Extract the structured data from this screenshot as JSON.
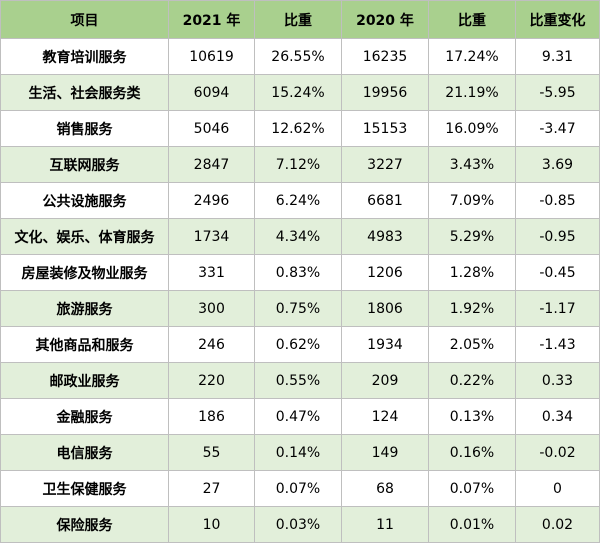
{
  "colors": {
    "header_bg": "#a9d08e",
    "row_alt_bg": "#e2efda",
    "row_bg": "#ffffff",
    "border": "#bfbfbf"
  },
  "table": {
    "headers": [
      "项目",
      "2021 年",
      "比重",
      "2020 年",
      "比重",
      "比重变化"
    ],
    "rows": [
      [
        "教育培训服务",
        "10619",
        "26.55%",
        "16235",
        "17.24%",
        "9.31"
      ],
      [
        "生活、社会服务类",
        "6094",
        "15.24%",
        "19956",
        "21.19%",
        "-5.95"
      ],
      [
        "销售服务",
        "5046",
        "12.62%",
        "15153",
        "16.09%",
        "-3.47"
      ],
      [
        "互联网服务",
        "2847",
        "7.12%",
        "3227",
        "3.43%",
        "3.69"
      ],
      [
        "公共设施服务",
        "2496",
        "6.24%",
        "6681",
        "7.09%",
        "-0.85"
      ],
      [
        "文化、娱乐、体育服务",
        "1734",
        "4.34%",
        "4983",
        "5.29%",
        "-0.95"
      ],
      [
        "房屋装修及物业服务",
        "331",
        "0.83%",
        "1206",
        "1.28%",
        "-0.45"
      ],
      [
        "旅游服务",
        "300",
        "0.75%",
        "1806",
        "1.92%",
        "-1.17"
      ],
      [
        "其他商品和服务",
        "246",
        "0.62%",
        "1934",
        "2.05%",
        "-1.43"
      ],
      [
        "邮政业服务",
        "220",
        "0.55%",
        "209",
        "0.22%",
        "0.33"
      ],
      [
        "金融服务",
        "186",
        "0.47%",
        "124",
        "0.13%",
        "0.34"
      ],
      [
        "电信服务",
        "55",
        "0.14%",
        "149",
        "0.16%",
        "-0.02"
      ],
      [
        "卫生保健服务",
        "27",
        "0.07%",
        "68",
        "0.07%",
        "0"
      ],
      [
        "保险服务",
        "10",
        "0.03%",
        "11",
        "0.01%",
        "0.02"
      ]
    ]
  }
}
